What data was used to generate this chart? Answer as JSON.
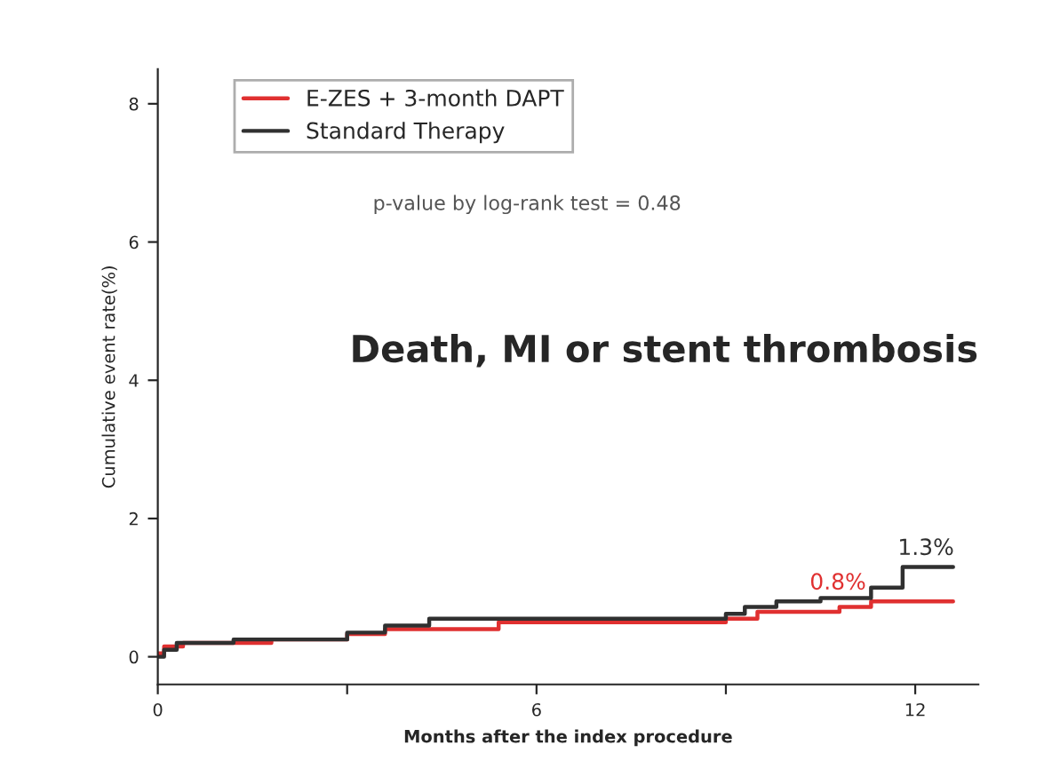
{
  "chart_data": {
    "type": "step",
    "title": "Death, MI or stent thrombosis",
    "xlabel": "Months after the index procedure",
    "ylabel": "Cumulative event rate(%)",
    "series": [
      {
        "name": "E-ZES + 3-month DAPT",
        "color": "#e03030",
        "x": [
          0,
          0.1,
          0.4,
          1.8,
          3.0,
          3.6,
          5.4,
          9.0,
          9.5,
          10.8,
          11.3,
          12.6
        ],
        "values": [
          0.05,
          0.15,
          0.2,
          0.25,
          0.33,
          0.4,
          0.5,
          0.55,
          0.65,
          0.72,
          0.8,
          0.8
        ]
      },
      {
        "name": "Standard Therapy",
        "color": "#303030",
        "x": [
          0,
          0.1,
          0.3,
          1.2,
          3.0,
          3.6,
          4.3,
          9.0,
          9.3,
          9.8,
          10.5,
          11.3,
          11.8,
          12.6
        ],
        "values": [
          0,
          0.1,
          0.2,
          0.25,
          0.35,
          0.45,
          0.55,
          0.62,
          0.72,
          0.8,
          0.85,
          1.0,
          1.3,
          1.3
        ]
      }
    ],
    "annotations": [
      "p-value by log-rank test = 0.48",
      {
        "text": "0.8%",
        "x": 11.3,
        "y": 0.8
      },
      {
        "text": "1.3%",
        "x": 11.8,
        "y": 1.3
      }
    ],
    "xlim": [
      0,
      13
    ],
    "xticks": [
      0,
      {
        "value": 3,
        "label": null
      },
      6,
      {
        "value": 9,
        "label": null
      },
      12
    ],
    "ylim": [
      -0.4,
      8.5
    ],
    "yticks": [
      0,
      2,
      4,
      6,
      8
    ],
    "legend": "top left",
    "line_style": "solid",
    "marker": "none",
    "grid": false
  }
}
